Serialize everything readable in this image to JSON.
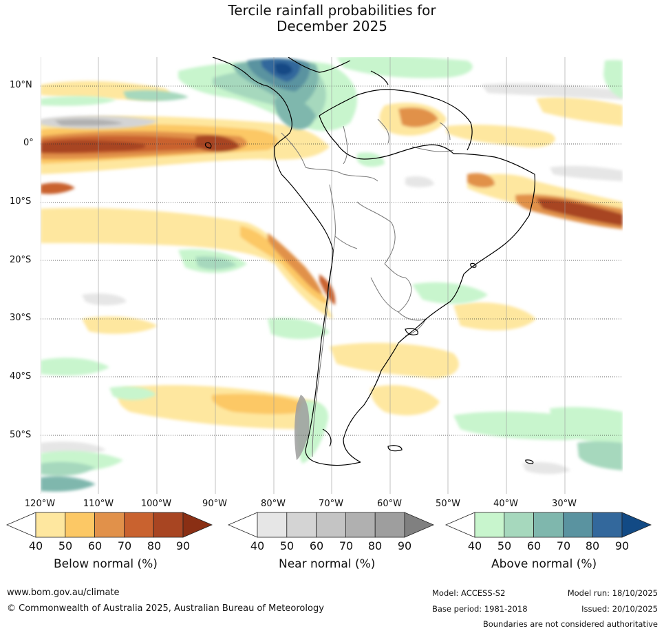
{
  "title": {
    "line1": "Tercile rainfall probabilities for",
    "line2": "December 2025"
  },
  "map": {
    "latitude_labels": [
      "10°N",
      "0°",
      "10°S",
      "20°S",
      "30°S",
      "40°S",
      "50°S"
    ],
    "longitude_labels": [
      "120°W",
      "110°W",
      "100°W",
      "90°W",
      "80°W",
      "70°W",
      "60°W",
      "50°W",
      "40°W",
      "30°W"
    ]
  },
  "legend": {
    "below": {
      "label": "Below normal (%)",
      "ticks": [
        "40",
        "50",
        "60",
        "70",
        "80",
        "90"
      ],
      "colors": [
        "#ffffff",
        "#fee79f",
        "#fcc865",
        "#e1914a",
        "#c9622f",
        "#a84522",
        "#8a2f14"
      ]
    },
    "near": {
      "label": "Near normal (%)",
      "ticks": [
        "40",
        "50",
        "60",
        "70",
        "80",
        "90"
      ],
      "colors": [
        "#ffffff",
        "#e6e6e6",
        "#d4d4d4",
        "#c4c4c4",
        "#b0b0b0",
        "#9e9e9e",
        "#808080"
      ]
    },
    "above": {
      "label": "Above normal (%)",
      "ticks": [
        "40",
        "50",
        "60",
        "70",
        "80",
        "90"
      ],
      "colors": [
        "#ffffff",
        "#c8f5cd",
        "#a6d8bd",
        "#7fb7ad",
        "#5a93a0",
        "#33689c",
        "#124a85"
      ]
    }
  },
  "footer": {
    "website": "www.bom.gov.au/climate",
    "copyright": "© Commonwealth of Australia 2025, Australian Bureau of Meteorology",
    "model": "Model: ACCESS-S2",
    "base_period": "Base period: 1981-2018",
    "model_run": "Model run: 18/10/2025",
    "issued": "Issued: 20/10/2025",
    "boundaries": "Boundaries are not considered authoritative"
  }
}
